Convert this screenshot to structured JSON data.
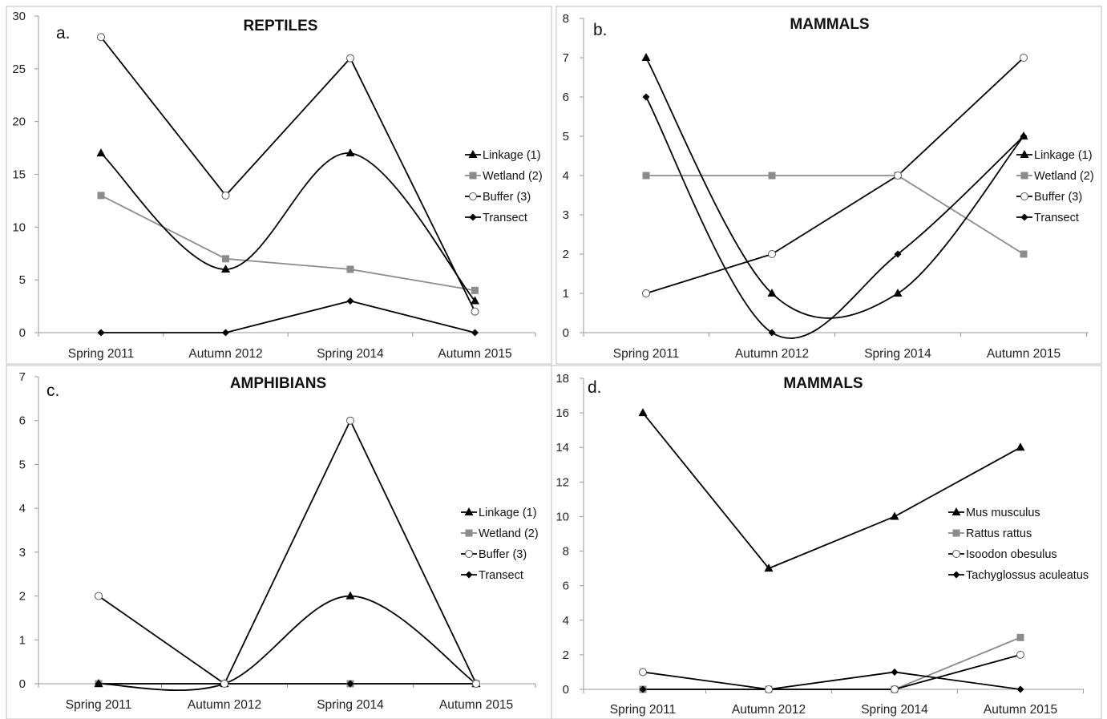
{
  "chart_data": [
    {
      "type": "line",
      "panel_label": "a.",
      "title": "REPTILES",
      "categories": [
        "Spring 2011",
        "Autumn 2012",
        "Spring 2014",
        "Autumn 2015"
      ],
      "ylim": [
        0,
        30
      ],
      "yticks": [
        0,
        5,
        10,
        15,
        20,
        25,
        30
      ],
      "legend_position": "right",
      "grid": false,
      "series": [
        {
          "name": "Linkage (1)",
          "values": [
            17,
            6,
            17,
            3
          ],
          "marker": "triangle",
          "color": "#000000",
          "smooth": true
        },
        {
          "name": "Wetland (2)",
          "values": [
            13,
            7,
            6,
            4
          ],
          "marker": "square",
          "color": "#8c8c8c",
          "smooth": false
        },
        {
          "name": "Buffer (3)",
          "values": [
            28,
            13,
            26,
            2
          ],
          "marker": "circle",
          "color": "#000000",
          "smooth": false
        },
        {
          "name": "Transect",
          "values": [
            0,
            0,
            3,
            0
          ],
          "marker": "diamond",
          "color": "#000000",
          "smooth": false
        }
      ]
    },
    {
      "type": "line",
      "panel_label": "b.",
      "title": "MAMMALS",
      "categories": [
        "Spring 2011",
        "Autumn 2012",
        "Spring 2014",
        "Autumn 2015"
      ],
      "ylim": [
        0,
        8
      ],
      "yticks": [
        0,
        1,
        2,
        3,
        4,
        5,
        6,
        7,
        8
      ],
      "legend_position": "right",
      "grid": false,
      "series": [
        {
          "name": "Linkage (1)",
          "values": [
            7,
            1,
            1,
            5
          ],
          "marker": "triangle",
          "color": "#000000",
          "smooth": true
        },
        {
          "name": "Wetland (2)",
          "values": [
            4,
            4,
            4,
            2
          ],
          "marker": "square",
          "color": "#8c8c8c",
          "smooth": false
        },
        {
          "name": "Buffer (3)",
          "values": [
            1,
            2,
            4,
            7
          ],
          "marker": "circle",
          "color": "#000000",
          "smooth": false
        },
        {
          "name": "Transect",
          "values": [
            6,
            0,
            2,
            5
          ],
          "marker": "diamond",
          "color": "#000000",
          "smooth": true
        }
      ]
    },
    {
      "type": "line",
      "panel_label": "c.",
      "title": "AMPHIBIANS",
      "categories": [
        "Spring 2011",
        "Autumn 2012",
        "Spring 2014",
        "Autumn 2015"
      ],
      "ylim": [
        0,
        7
      ],
      "yticks": [
        0,
        1,
        2,
        3,
        4,
        5,
        6,
        7
      ],
      "legend_position": "right",
      "grid": false,
      "series": [
        {
          "name": "Linkage (1)",
          "values": [
            0,
            0,
            2,
            0
          ],
          "marker": "triangle",
          "color": "#000000",
          "smooth": true
        },
        {
          "name": "Wetland (2)",
          "values": [
            0,
            0,
            0,
            0
          ],
          "marker": "square",
          "color": "#8c8c8c",
          "smooth": false
        },
        {
          "name": "Buffer (3)",
          "values": [
            2,
            0,
            6,
            0
          ],
          "marker": "circle",
          "color": "#000000",
          "smooth": false
        },
        {
          "name": "Transect",
          "values": [
            0,
            0,
            0,
            0
          ],
          "marker": "diamond",
          "color": "#000000",
          "smooth": false
        }
      ]
    },
    {
      "type": "line",
      "panel_label": "d.",
      "title": "MAMMALS",
      "categories": [
        "Spring 2011",
        "Autumn 2012",
        "Spring 2014",
        "Autumn 2015"
      ],
      "ylim": [
        0,
        18
      ],
      "yticks": [
        0,
        2,
        4,
        6,
        8,
        10,
        12,
        14,
        16,
        18
      ],
      "legend_position": "right",
      "grid": false,
      "series": [
        {
          "name": "Mus musculus",
          "values": [
            16,
            7,
            10,
            14
          ],
          "marker": "triangle",
          "color": "#000000",
          "smooth": false
        },
        {
          "name": "Rattus rattus",
          "values": [
            0,
            0,
            0,
            3
          ],
          "marker": "square",
          "color": "#8c8c8c",
          "smooth": false
        },
        {
          "name": "Isoodon obesulus",
          "values": [
            1,
            0,
            0,
            2
          ],
          "marker": "circle",
          "color": "#000000",
          "smooth": false
        },
        {
          "name": "Tachyglossus aculeatus",
          "values": [
            0,
            0,
            1,
            0
          ],
          "marker": "diamond",
          "color": "#000000",
          "smooth": false
        }
      ]
    }
  ]
}
